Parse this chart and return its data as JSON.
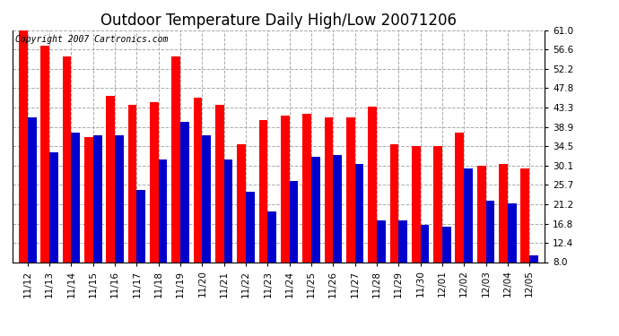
{
  "title": "Outdoor Temperature Daily High/Low 20071206",
  "copyright_text": "Copyright 2007 Cartronics.com",
  "yticks": [
    8.0,
    12.4,
    16.8,
    21.2,
    25.7,
    30.1,
    34.5,
    38.9,
    43.3,
    47.8,
    52.2,
    56.6,
    61.0
  ],
  "ylim": [
    8.0,
    61.0
  ],
  "background_color": "#ffffff",
  "plot_bg_color": "#ffffff",
  "grid_color": "#aaaaaa",
  "bar_width": 0.4,
  "dates": [
    "11/12",
    "11/13",
    "11/14",
    "11/15",
    "11/16",
    "11/17",
    "11/18",
    "11/19",
    "11/20",
    "11/21",
    "11/22",
    "11/23",
    "11/24",
    "11/25",
    "11/26",
    "11/27",
    "11/28",
    "11/29",
    "11/30",
    "12/01",
    "12/02",
    "12/03",
    "12/04",
    "12/05"
  ],
  "highs": [
    61.0,
    57.5,
    55.0,
    36.5,
    46.0,
    44.0,
    44.5,
    55.0,
    45.5,
    44.0,
    35.0,
    40.5,
    41.5,
    42.0,
    41.0,
    41.0,
    43.5,
    35.0,
    34.5,
    34.5,
    37.5,
    30.1,
    30.5,
    29.5
  ],
  "lows": [
    41.0,
    33.0,
    37.5,
    37.0,
    37.0,
    24.5,
    31.5,
    40.0,
    37.0,
    31.5,
    24.0,
    19.5,
    26.5,
    32.0,
    32.5,
    30.5,
    17.5,
    17.5,
    16.5,
    16.0,
    29.5,
    22.0,
    21.5,
    9.5
  ],
  "high_color": "#ff0000",
  "low_color": "#0000cc",
  "title_fontsize": 12,
  "tick_fontsize": 7.5,
  "copyright_fontsize": 7
}
